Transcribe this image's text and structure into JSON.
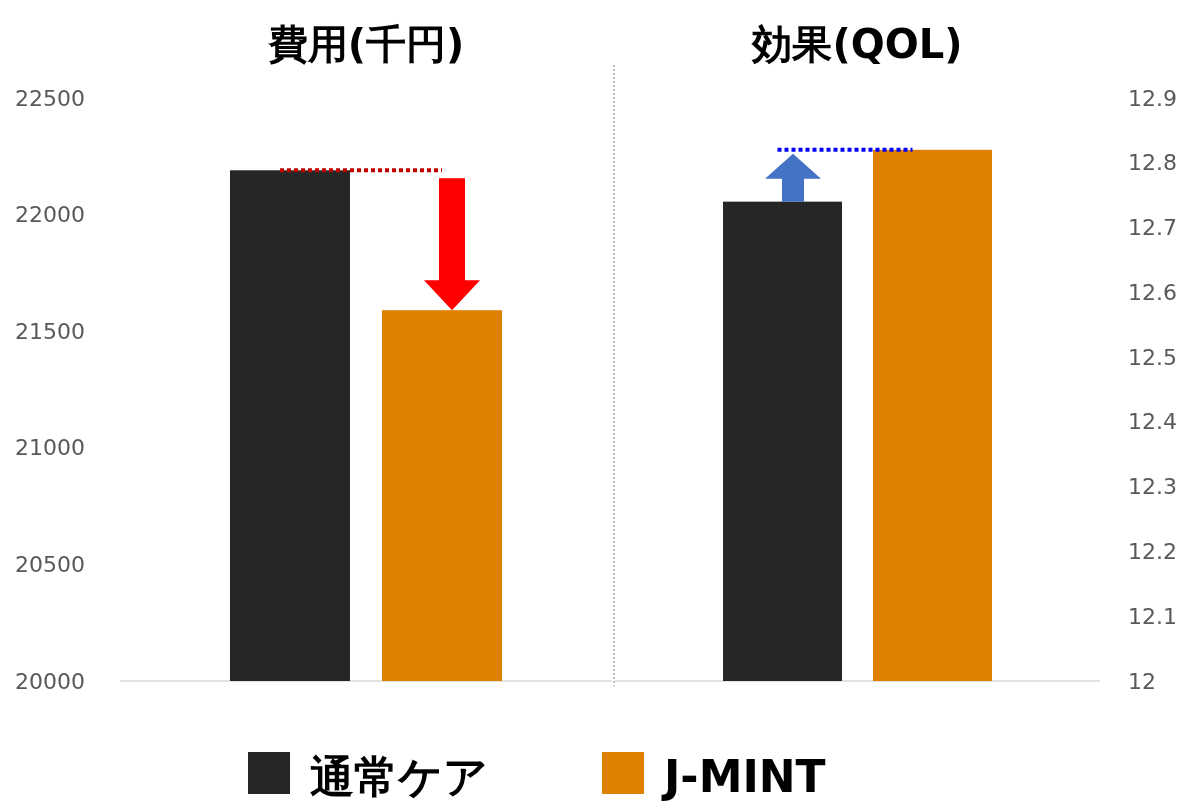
{
  "chart_data": [
    {
      "type": "bar",
      "title": "費用(千円)",
      "categories": [
        null
      ],
      "legend": "bottom",
      "series": [
        {
          "name": "通常ケア",
          "color": "#262626",
          "values": [
            22190
          ]
        },
        {
          "name": "J-MINT",
          "color": "#e08000",
          "values": [
            21590
          ]
        }
      ],
      "ylim": [
        20000,
        22500
      ],
      "yticks": [
        20000,
        20500,
        21000,
        21500,
        22000,
        22500
      ],
      "ref_lines": [
        {
          "axis": "y",
          "value": 22190,
          "color": "#c00000",
          "line_style": "dotted"
        }
      ]
    },
    {
      "type": "bar",
      "title": "効果(QOL)",
      "categories": [
        null
      ],
      "series": [
        {
          "color": "#262626",
          "values": [
            12.74
          ]
        },
        {
          "color": "#e08000",
          "values": [
            12.82
          ]
        }
      ],
      "ylim": [
        12,
        12.9
      ],
      "yticks": [
        {
          "value": 12,
          "label": "12"
        },
        12.1,
        12.2,
        12.3,
        12.4,
        12.5,
        12.6,
        12.7,
        12.8,
        12.9
      ],
      "ref_lines": [
        {
          "axis": "y",
          "value": 12.82,
          "color": "#0000ff",
          "line_style": "dotted"
        }
      ]
    }
  ]
}
